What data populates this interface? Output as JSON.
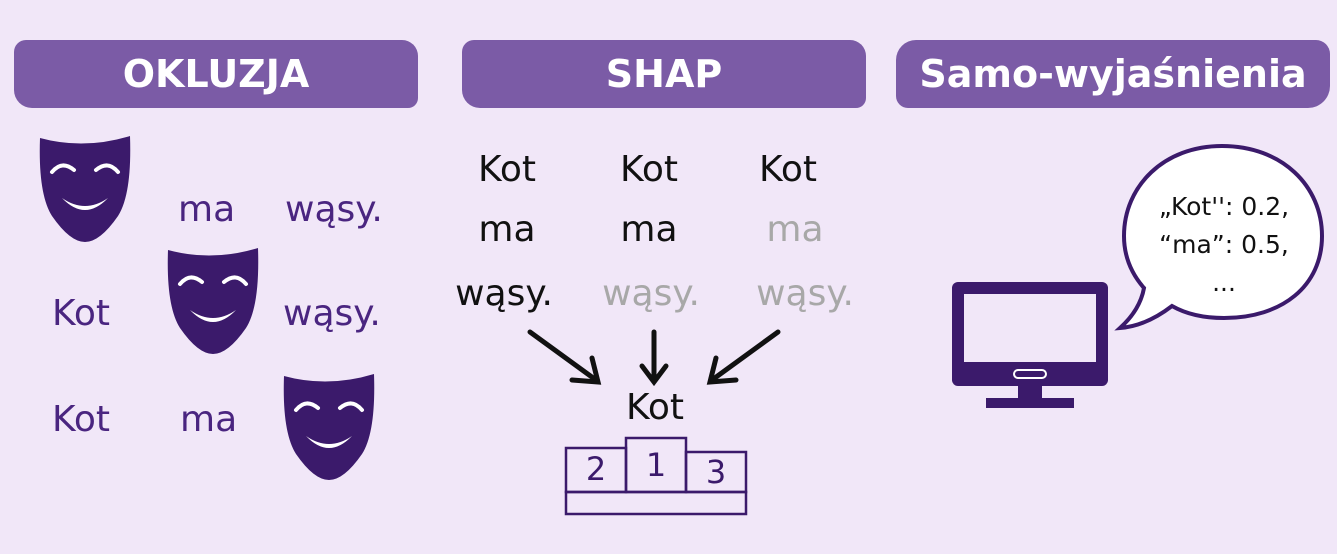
{
  "headers": {
    "occlusion": "OKLUZJA",
    "shap": "SHAP",
    "self_explanation": "Samo-wyjaśnienia"
  },
  "occlusion": {
    "rows": [
      [
        "",
        "ma",
        "wąsy."
      ],
      [
        "Kot",
        "",
        "wąsy."
      ],
      [
        "Kot",
        "ma",
        ""
      ]
    ],
    "mask_icon": "theater-mask-icon"
  },
  "shap": {
    "columns": [
      [
        "Kot",
        "ma",
        "wąsy."
      ],
      [
        "Kot",
        "ma",
        "wąsy."
      ],
      [
        "Kot",
        "ma",
        "wąsy."
      ]
    ],
    "result": "Kot",
    "podium": [
      "2",
      "1",
      "3"
    ]
  },
  "self_explanation": {
    "bubble_lines": [
      "„Kot'': 0.2,",
      "“ma”: 0.5,",
      "..."
    ],
    "icon": "computer-monitor-icon"
  },
  "colors": {
    "background": "#f1e7f8",
    "banner": "#7b5ba6",
    "accent": "#3b1a6b",
    "gray_text": "#a8a8a8"
  }
}
